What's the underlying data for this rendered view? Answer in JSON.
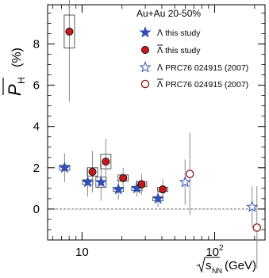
{
  "chart_data": {
    "type": "scatter",
    "title": "Au+Au 20-50%",
    "xlabel": "√s_NN (GeV)",
    "xlabel_parts": {
      "root": "s",
      "sub": "NN",
      "unit": "(GeV)"
    },
    "ylabel": "P̄_H (%)",
    "ylabel_parts": {
      "symbol": "P",
      "sub": "H",
      "unit": "(%)"
    },
    "xscale": "log",
    "xlim": [
      5.5,
      240
    ],
    "ylim": [
      -1.5,
      9.9
    ],
    "xticks": [
      {
        "value": 10,
        "label": "10"
      },
      {
        "value": 100,
        "label": "10",
        "sup": "2"
      }
    ],
    "yticks": [
      0,
      2,
      4,
      6,
      8
    ],
    "reference_line": {
      "y": 0,
      "style": "dashed"
    },
    "series": [
      {
        "name": "Λ this study",
        "legend_symbol": "Λ",
        "legend_rest": " this study",
        "marker": "star",
        "filled": true,
        "color": "#2f4fb7",
        "points": [
          {
            "x": 7.7,
            "y": 2.0,
            "err": 0.7,
            "sys": 0.12
          },
          {
            "x": 11.5,
            "y": 1.3,
            "err": 0.7,
            "sys": 0.12
          },
          {
            "x": 14.5,
            "y": 1.3,
            "err": 0.9,
            "sys": 0.25
          },
          {
            "x": 19.6,
            "y": 0.95,
            "err": 0.5,
            "sys": 0.1
          },
          {
            "x": 27.0,
            "y": 1.0,
            "err": 0.4,
            "sys": 0.1
          },
          {
            "x": 39.0,
            "y": 0.5,
            "err": 0.4,
            "sys": 0.1
          }
        ]
      },
      {
        "name": "Λ̄ this study",
        "legend_symbol": "Λ",
        "legend_bar": true,
        "legend_rest": " this study",
        "marker": "circle",
        "filled": true,
        "color": "#c41a1a",
        "points": [
          {
            "x": 7.7,
            "y": 8.6,
            "err": 3.4,
            "sys": 0.8
          },
          {
            "x": 11.5,
            "y": 1.8,
            "err": 1.0,
            "sys": 0.2
          },
          {
            "x": 14.5,
            "y": 2.3,
            "err": 1.1,
            "sys": 0.35
          },
          {
            "x": 19.6,
            "y": 1.5,
            "err": 0.5,
            "sys": 0.15
          },
          {
            "x": 27.0,
            "y": 1.2,
            "err": 0.5,
            "sys": 0.12
          },
          {
            "x": 39.0,
            "y": 0.95,
            "err": 0.5,
            "sys": 0.1
          }
        ]
      },
      {
        "name": "Λ PRC76 024915 (2007)",
        "legend_symbol": "Λ",
        "legend_rest": " PRC76 024915 (2007)",
        "marker": "star",
        "filled": false,
        "color": "#2f4fb7",
        "points": [
          {
            "x": 62.4,
            "y": 1.3,
            "err": 1.1
          },
          {
            "x": 200,
            "y": 0.1,
            "err": 1.0
          }
        ]
      },
      {
        "name": "Λ̄ PRC76 024915 (2007)",
        "legend_symbol": "Λ",
        "legend_bar": true,
        "legend_rest": " PRC76 024915 (2007)",
        "marker": "circle",
        "filled": false,
        "color": "#8b1a1a",
        "points": [
          {
            "x": 62.4,
            "y": 1.7,
            "err": 2.0
          },
          {
            "x": 200,
            "y": -0.9,
            "err": 2.0
          }
        ]
      }
    ]
  }
}
